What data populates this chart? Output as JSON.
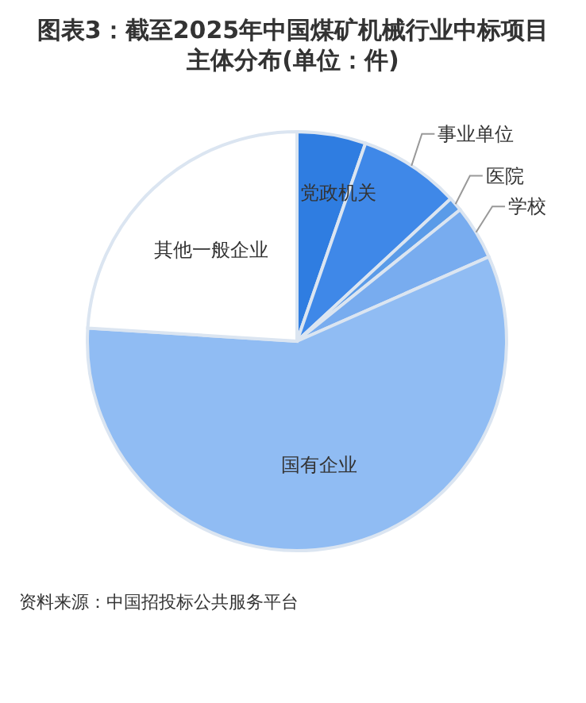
{
  "chart_data": {
    "type": "pie",
    "title": "图表3：截至2025年中国煤矿机械行业中标项目主体分布(单位：件)",
    "categories": [
      "党政机关",
      "事业单位",
      "医院",
      "学校",
      "国有企业",
      "其他一般企业"
    ],
    "values": [
      5.3,
      7.8,
      1.1,
      4.2,
      57.6,
      24.0
    ],
    "colors": [
      "#2f7de1",
      "#3f88e8",
      "#5a9be8",
      "#78acef",
      "#90bcf3",
      "#ffffff"
    ],
    "annotations": [
      "资料来源：中国招投标公共服务平台"
    ]
  }
}
